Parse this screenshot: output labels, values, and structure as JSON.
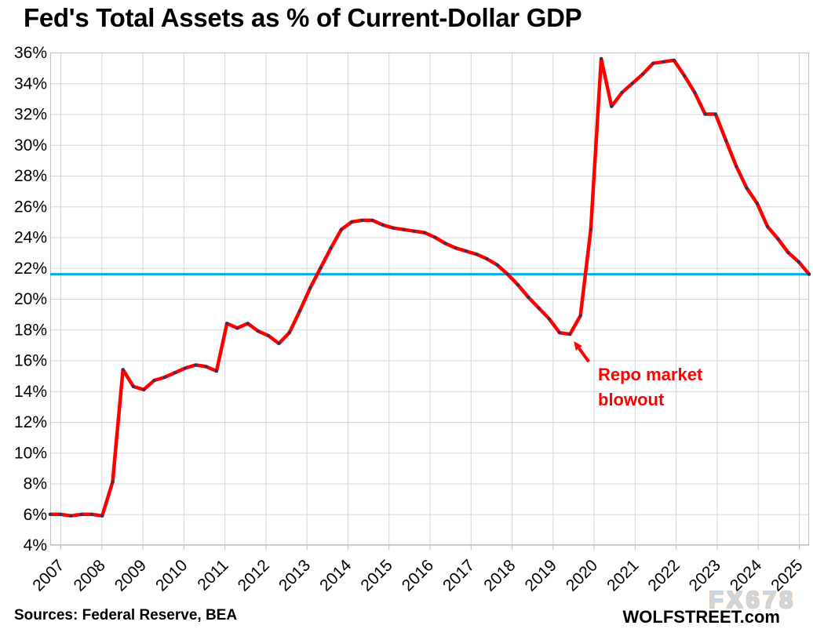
{
  "title": "Fed's Total Assets as % of Current-Dollar GDP",
  "footer": {
    "sources": "Sources: Federal Reserve, BEA",
    "brand": "WOLFSTREET.com",
    "watermark": "FX678"
  },
  "chart_data": {
    "type": "line",
    "title": "Fed's Total Assets as % of Current-Dollar GDP",
    "grid": true,
    "legend": "none",
    "x_axis": {
      "start": "2007 Q1",
      "end": "2025 Q2",
      "frequency": "quarterly",
      "tick_labels": [
        "2007",
        "2008",
        "2009",
        "2010",
        "2011",
        "2012",
        "2013",
        "2014",
        "2015",
        "2016",
        "2017",
        "2018",
        "2019",
        "2020",
        "2021",
        "2022",
        "2023",
        "2024",
        "2025"
      ]
    },
    "y_axis": {
      "min": 4,
      "max": 36,
      "tick_step": 2,
      "tick_labels": [
        "4%",
        "6%",
        "8%",
        "10%",
        "12%",
        "14%",
        "16%",
        "18%",
        "20%",
        "22%",
        "24%",
        "26%",
        "28%",
        "30%",
        "32%",
        "34%",
        "36%"
      ]
    },
    "series": [
      {
        "name": "Fed's Total Assets as % of Current-Dollar GDP",
        "color": "#ff0000",
        "marker_color": "#1f3864",
        "values": [
          6.0,
          6.0,
          5.9,
          6.0,
          6.0,
          5.9,
          8.1,
          15.4,
          14.3,
          14.1,
          14.7,
          14.9,
          15.2,
          15.5,
          15.7,
          15.6,
          15.3,
          18.4,
          18.1,
          18.4,
          17.9,
          17.6,
          17.1,
          17.8,
          19.2,
          20.7,
          22.0,
          23.3,
          24.5,
          25.0,
          25.1,
          25.1,
          24.8,
          24.6,
          24.5,
          24.4,
          24.3,
          24.0,
          23.6,
          23.3,
          23.1,
          22.9,
          22.6,
          22.2,
          21.6,
          20.9,
          20.1,
          19.4,
          18.7,
          17.8,
          17.7,
          18.9,
          24.5,
          35.6,
          32.5,
          33.4,
          34.0,
          34.6,
          35.3,
          35.4,
          35.5,
          34.5,
          33.4,
          32.0,
          32.0,
          30.3,
          28.6,
          27.2,
          26.2,
          24.7,
          23.9,
          23.0,
          22.4,
          21.6
        ]
      }
    ],
    "reference_line": {
      "value": 21.6,
      "color": "#00aeef"
    },
    "annotation": {
      "line1": "Repo market",
      "line2": "blowout",
      "color": "#ff0000",
      "arrow_target": {
        "quarter": "2019 Q3",
        "value": 17.7
      }
    }
  }
}
